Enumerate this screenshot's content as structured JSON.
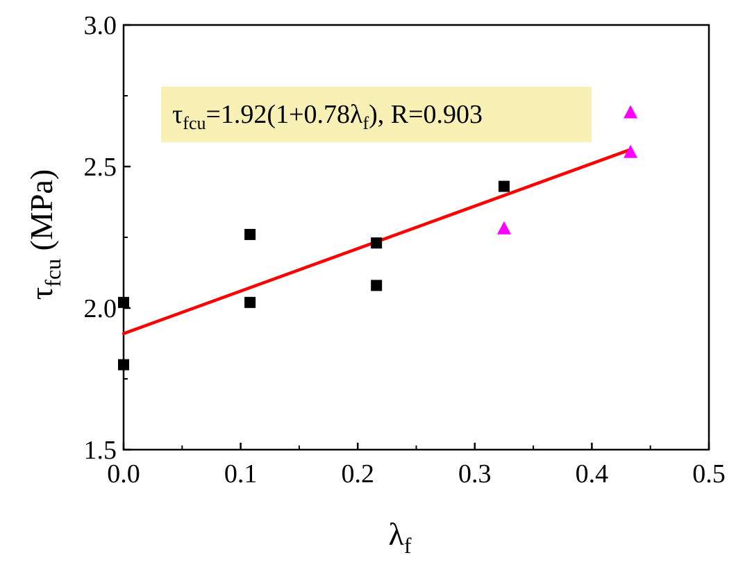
{
  "chart_data": {
    "type": "scatter",
    "title": "",
    "xlabel": {
      "main": "λ",
      "sub": "f"
    },
    "ylabel": {
      "main": "τ",
      "sub": "fcu",
      "suffix": " (MPa)"
    },
    "xlim": [
      0,
      0.5
    ],
    "ylim": [
      1.5,
      3.0
    ],
    "xticks": [
      "0.0",
      "0.1",
      "0.2",
      "0.3",
      "0.4",
      "0.5"
    ],
    "yticks": [
      "1.5",
      "2.0",
      "2.5",
      "3.0"
    ],
    "grid": false,
    "series": [
      {
        "marker": "square",
        "color": "#000000",
        "points": [
          [
            0.0,
            2.02
          ],
          [
            0.0,
            1.8
          ],
          [
            0.108,
            2.26
          ],
          [
            0.108,
            2.02
          ],
          [
            0.216,
            2.23
          ],
          [
            0.216,
            2.08
          ],
          [
            0.325,
            2.43
          ]
        ]
      },
      {
        "marker": "triangle",
        "color": "#ff00ff",
        "points": [
          [
            0.325,
            2.28
          ],
          [
            0.433,
            2.69
          ],
          [
            0.433,
            2.55
          ]
        ]
      }
    ],
    "fit_line": {
      "color": "#ff0000",
      "x": [
        0.0,
        0.433
      ],
      "y": [
        1.91,
        2.56
      ]
    },
    "annotation": {
      "parts": [
        "τ",
        "fcu",
        "=1.92(1+0.78λ",
        "f",
        "),  R=0.903"
      ],
      "background": "#f8f0b4"
    }
  }
}
